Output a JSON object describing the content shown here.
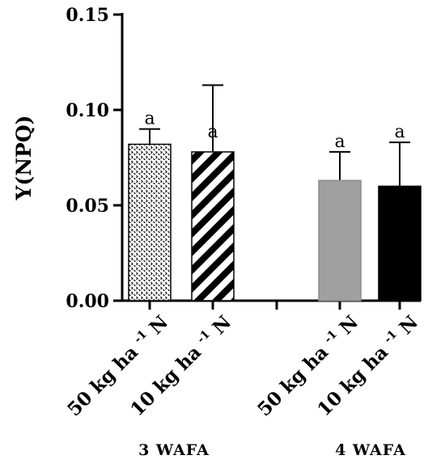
{
  "chart_data": {
    "type": "bar",
    "ylabel": "Y(NPQ)",
    "ylim": [
      0,
      0.15
    ],
    "y_ticks": [
      "0.00",
      "0.05",
      "0.10",
      "0.15"
    ],
    "grid": false,
    "groups": [
      {
        "label": "3 WAFA",
        "bars": [
          {
            "category": "50 kg ha -1 N",
            "value": 0.082,
            "error": 0.008,
            "letter": "a",
            "pattern": "dotted",
            "color": "#ffffff"
          },
          {
            "category": "10 kg ha -1 N",
            "value": 0.078,
            "error": 0.035,
            "letter": "a",
            "pattern": "diagonal-stripes",
            "color": "#ffffff"
          }
        ]
      },
      {
        "label": "4 WAFA",
        "bars": [
          {
            "category": "50 kg ha -1 N",
            "value": 0.063,
            "error": 0.015,
            "letter": "a",
            "pattern": "solid",
            "color": "#a0a0a0"
          },
          {
            "category": "10 kg ha -1 N",
            "value": 0.06,
            "error": 0.023,
            "letter": "a",
            "pattern": "solid",
            "color": "#000000"
          }
        ]
      }
    ],
    "category_parts": {
      "main": "kg ha",
      "superscript": "-1",
      "suffix": "N"
    }
  }
}
